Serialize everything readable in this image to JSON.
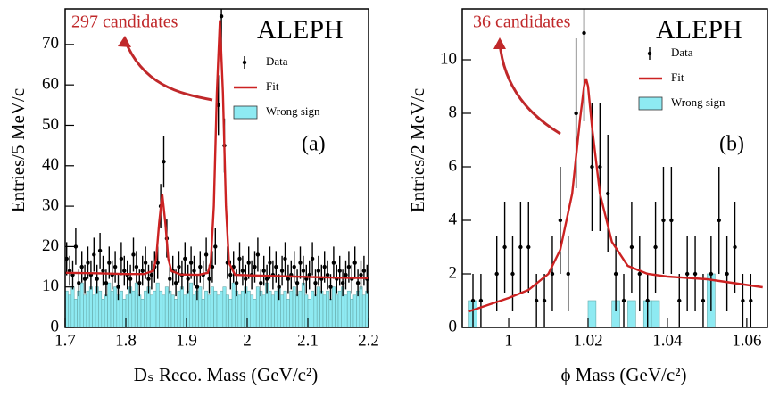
{
  "chart_data": [
    {
      "type": "errorbar",
      "note": "297 candidates",
      "experiment": "ALEPH",
      "panel_label": "(a)",
      "x_label": "Dₛ Reco. Mass (GeV/c²)",
      "y_label": "Entries/5 MeV/c",
      "xlim": [
        1.7,
        2.2
      ],
      "xticks": [
        1.7,
        1.8,
        1.9,
        2,
        2.1,
        2.2
      ],
      "ylim": [
        0,
        78.8
      ],
      "yticks": [
        0,
        10,
        20,
        30,
        40,
        50,
        60,
        70
      ],
      "series": [
        {
          "name": "Wrong sign",
          "style": "bars",
          "color": "#8eeaf2",
          "x": [
            1.7025,
            1.7075,
            1.7125,
            1.7175,
            1.7225,
            1.7275,
            1.7325,
            1.7375,
            1.7425,
            1.7475,
            1.7525,
            1.7575,
            1.7625,
            1.7675,
            1.7725,
            1.7775,
            1.7825,
            1.7875,
            1.7925,
            1.7975,
            1.8025,
            1.8075,
            1.8125,
            1.8175,
            1.8225,
            1.8275,
            1.8325,
            1.8375,
            1.8425,
            1.8475,
            1.8525,
            1.8575,
            1.8625,
            1.8675,
            1.8725,
            1.8775,
            1.8825,
            1.8875,
            1.8925,
            1.8975,
            1.9025,
            1.9075,
            1.9125,
            1.9175,
            1.9225,
            1.9275,
            1.9325,
            1.9375,
            1.9425,
            1.9475,
            1.9525,
            1.9575,
            1.9625,
            1.9675,
            1.9725,
            1.9775,
            1.9825,
            1.9875,
            1.9925,
            1.9975,
            2.0025,
            2.0075,
            2.0125,
            2.0175,
            2.0225,
            2.0275,
            2.0325,
            2.0375,
            2.0425,
            2.0475,
            2.0525,
            2.0575,
            2.0625,
            2.0675,
            2.0725,
            2.0775,
            2.0825,
            2.0875,
            2.0925,
            2.0975,
            2.1025,
            2.1075,
            2.1125,
            2.1175,
            2.1225,
            2.1275,
            2.1325,
            2.1375,
            2.1425,
            2.1475,
            2.1525,
            2.1575,
            2.1625,
            2.1675,
            2.1725,
            2.1775,
            2.1825,
            2.1875,
            2.1925,
            2.1975
          ],
          "values": [
            9,
            8,
            10,
            7,
            9,
            11,
            8,
            9,
            10,
            8,
            10,
            9,
            7,
            8,
            11,
            9,
            10,
            8,
            9,
            7,
            8,
            10,
            9,
            11,
            8,
            7,
            9,
            10,
            8,
            9,
            11,
            9,
            8,
            10,
            9,
            8,
            7,
            9,
            10,
            8,
            9,
            11,
            8,
            9,
            10,
            7,
            9,
            8,
            10,
            9,
            8,
            9,
            10,
            8,
            7,
            11,
            9,
            8,
            9,
            10,
            9,
            8,
            7,
            10,
            9,
            8,
            11,
            9,
            8,
            9,
            10,
            8,
            9,
            7,
            9,
            10,
            8,
            9,
            11,
            8,
            7,
            9,
            8,
            10,
            9,
            8,
            9,
            7,
            10,
            8,
            9,
            10,
            8,
            9,
            7,
            8,
            9,
            10,
            8,
            9
          ]
        },
        {
          "name": "Data",
          "style": "points",
          "color": "#000000",
          "x": [
            1.7025,
            1.7075,
            1.7125,
            1.7175,
            1.7225,
            1.7275,
            1.7325,
            1.7375,
            1.7425,
            1.7475,
            1.7525,
            1.7575,
            1.7625,
            1.7675,
            1.7725,
            1.7775,
            1.7825,
            1.7875,
            1.7925,
            1.7975,
            1.8025,
            1.8075,
            1.8125,
            1.8175,
            1.8225,
            1.8275,
            1.8325,
            1.8375,
            1.8425,
            1.8475,
            1.8525,
            1.8575,
            1.8625,
            1.8675,
            1.8725,
            1.8775,
            1.8825,
            1.8875,
            1.8925,
            1.8975,
            1.9025,
            1.9075,
            1.9125,
            1.9175,
            1.9225,
            1.9275,
            1.9325,
            1.9375,
            1.9425,
            1.9475,
            1.9525,
            1.9575,
            1.9625,
            1.9675,
            1.9725,
            1.9775,
            1.9825,
            1.9875,
            1.9925,
            1.9975,
            2.0025,
            2.0075,
            2.0125,
            2.0175,
            2.0225,
            2.0275,
            2.0325,
            2.0375,
            2.0425,
            2.0475,
            2.0525,
            2.0575,
            2.0625,
            2.0675,
            2.0725,
            2.0775,
            2.0825,
            2.0875,
            2.0925,
            2.0975,
            2.1025,
            2.1075,
            2.1125,
            2.1175,
            2.1225,
            2.1275,
            2.1325,
            2.1375,
            2.1425,
            2.1475,
            2.1525,
            2.1575,
            2.1625,
            2.1675,
            2.1725,
            2.1775,
            2.1825,
            2.1875,
            2.1925,
            2.1975
          ],
          "values": [
            17,
            14,
            13,
            20,
            11,
            15,
            12,
            16,
            13,
            18,
            12,
            19,
            14,
            11,
            16,
            13,
            15,
            10,
            17,
            14,
            13,
            12,
            18,
            15,
            11,
            14,
            16,
            12,
            13,
            15,
            16,
            30,
            41,
            22,
            12,
            14,
            11,
            15,
            13,
            17,
            12,
            16,
            14,
            10,
            15,
            13,
            18,
            12,
            15,
            20,
            55,
            77,
            45,
            16,
            13,
            15,
            11,
            17,
            14,
            12,
            16,
            13,
            15,
            18,
            11,
            14,
            12,
            16,
            13,
            15,
            10,
            14,
            17,
            12,
            13,
            15,
            11,
            16,
            14,
            12,
            13,
            17,
            11,
            14,
            12,
            15,
            13,
            10,
            16,
            12,
            14,
            11,
            13,
            15,
            12,
            16,
            11,
            13,
            14,
            12
          ],
          "errors": [
            4.1,
            3.7,
            3.6,
            4.5,
            3.3,
            3.9,
            3.5,
            4,
            3.6,
            4.2,
            3.5,
            4.4,
            3.7,
            3.3,
            4,
            3.6,
            3.9,
            3.2,
            4.1,
            3.7,
            3.6,
            3.5,
            4.2,
            3.9,
            3.3,
            3.7,
            4,
            3.5,
            3.6,
            3.9,
            4,
            5.5,
            6.4,
            4.7,
            3.5,
            3.7,
            3.3,
            3.9,
            3.6,
            4.1,
            3.5,
            4,
            3.7,
            3.2,
            3.9,
            3.6,
            4.2,
            3.5,
            3.9,
            4.5,
            7.4,
            8.8,
            6.7,
            4,
            3.6,
            3.9,
            3.3,
            4.1,
            3.7,
            3.5,
            4,
            3.6,
            3.9,
            4.2,
            3.3,
            3.7,
            3.5,
            4,
            3.6,
            3.9,
            3.2,
            3.7,
            4.1,
            3.5,
            3.6,
            3.9,
            3.3,
            4,
            3.7,
            3.5,
            3.6,
            4.1,
            3.3,
            3.7,
            3.5,
            3.9,
            3.6,
            3.2,
            4,
            3.5,
            3.7,
            3.3,
            3.6,
            3.9,
            3.5,
            4,
            3.3,
            3.6,
            3.7,
            3.5
          ]
        },
        {
          "name": "Fit",
          "style": "line",
          "color": "#cc2222",
          "x": [
            1.7,
            1.75,
            1.8,
            1.83,
            1.845,
            1.85,
            1.855,
            1.86,
            1.865,
            1.87,
            1.875,
            1.89,
            1.92,
            1.935,
            1.94,
            1.945,
            1.95,
            1.955,
            1.96,
            1.965,
            1.97,
            1.98,
            2.0,
            2.05,
            2.1,
            2.15,
            2.2
          ],
          "values": [
            13.5,
            13.4,
            13.2,
            13.2,
            14,
            17,
            26,
            33,
            26,
            17,
            14,
            13.1,
            13,
            13.5,
            16,
            30,
            58,
            76,
            58,
            30,
            16,
            13,
            12.9,
            12.7,
            12.5,
            12.3,
            12.2
          ]
        }
      ]
    },
    {
      "type": "errorbar",
      "note": "36 candidates",
      "experiment": "ALEPH",
      "panel_label": "(b)",
      "x_label": "ϕ Mass (GeV/c²)",
      "y_label": "Entries/2 MeV/c",
      "xlim": [
        0.9883,
        1.0652
      ],
      "xticks": [
        1,
        1.02,
        1.04,
        1.06
      ],
      "ylim": [
        0,
        11.9
      ],
      "yticks": [
        0,
        2,
        4,
        6,
        8,
        10
      ],
      "series": [
        {
          "name": "Wrong sign",
          "style": "bars",
          "color": "#8eeaf2",
          "x": [
            0.991,
            0.993,
            0.995,
            0.997,
            0.999,
            1.001,
            1.003,
            1.005,
            1.007,
            1.009,
            1.011,
            1.013,
            1.015,
            1.017,
            1.019,
            1.021,
            1.023,
            1.025,
            1.027,
            1.029,
            1.031,
            1.033,
            1.035,
            1.037,
            1.039,
            1.041,
            1.043,
            1.045,
            1.047,
            1.049,
            1.051,
            1.053,
            1.055,
            1.057,
            1.059,
            1.061
          ],
          "values": [
            1,
            0,
            0,
            0,
            0,
            0,
            0,
            0,
            0,
            0,
            0,
            0,
            0,
            0,
            0,
            1,
            0,
            0,
            1,
            0,
            1,
            0,
            1,
            1,
            0,
            0,
            0,
            0,
            0,
            0,
            2,
            0,
            0,
            0,
            0,
            0
          ]
        },
        {
          "name": "Data",
          "style": "points",
          "color": "#000000",
          "x": [
            0.991,
            0.993,
            0.995,
            0.997,
            0.999,
            1.001,
            1.003,
            1.005,
            1.007,
            1.009,
            1.011,
            1.013,
            1.015,
            1.017,
            1.019,
            1.021,
            1.023,
            1.025,
            1.027,
            1.029,
            1.031,
            1.033,
            1.035,
            1.037,
            1.039,
            1.041,
            1.043,
            1.045,
            1.047,
            1.049,
            1.051,
            1.053,
            1.055,
            1.057,
            1.059,
            1.061
          ],
          "values": [
            1,
            1,
            null,
            2,
            3,
            2,
            3,
            3,
            1,
            1,
            2,
            4,
            2,
            8,
            11,
            6,
            6,
            5,
            2,
            1,
            3,
            2,
            1,
            3,
            4,
            4,
            1,
            2,
            2,
            1,
            2,
            4,
            2,
            3,
            1,
            1
          ],
          "errors": [
            1,
            1,
            null,
            1.4,
            1.7,
            1.4,
            1.7,
            1.7,
            1,
            1,
            1.4,
            2,
            1.4,
            2.8,
            3.3,
            2.4,
            2.4,
            2.2,
            1.4,
            1,
            1.7,
            1.4,
            1,
            1.7,
            2,
            2,
            1,
            1.4,
            1.4,
            1,
            1.4,
            2,
            1.4,
            1.7,
            1,
            1
          ]
        },
        {
          "name": "Fit",
          "style": "line",
          "color": "#cc2222",
          "x": [
            0.99,
            1.0,
            1.005,
            1.01,
            1.013,
            1.016,
            1.018,
            1.019,
            1.0195,
            1.02,
            1.021,
            1.023,
            1.026,
            1.03,
            1.035,
            1.04,
            1.05,
            1.064
          ],
          "values": [
            0.6,
            1.1,
            1.4,
            2.0,
            2.9,
            5,
            7.8,
            9,
            9.3,
            9,
            7.5,
            5,
            3.2,
            2.3,
            2.0,
            1.9,
            1.8,
            1.5
          ]
        }
      ]
    }
  ]
}
